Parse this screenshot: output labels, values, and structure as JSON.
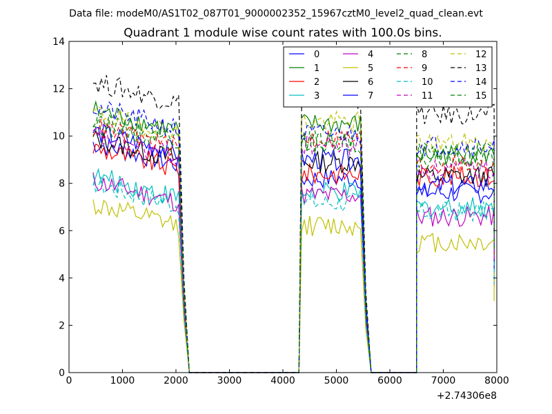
{
  "chart_data": {
    "type": "line",
    "suptitle": "Data file: modeM0/AS1T02_087T01_9000002352_15967cztM0_level2_quad_clean.evt",
    "title": "Quadrant 1 module wise count rates with 100.0s bins.",
    "xlabel": "",
    "ylabel": "",
    "x_offset_label": "+2.74306e8",
    "xlim": [
      0,
      8000
    ],
    "ylim": [
      0,
      14
    ],
    "xticks": [
      "0",
      "1000",
      "2000",
      "3000",
      "4000",
      "5000",
      "6000",
      "7000",
      "8000"
    ],
    "yticks": [
      "0",
      "2",
      "4",
      "6",
      "8",
      "10",
      "12",
      "14"
    ],
    "grid": false,
    "legend_position": "top-right",
    "segments": [
      {
        "x_start": 450,
        "x_end": 2050,
        "x_drop": 2250
      },
      {
        "x_start": 4300,
        "x_end": 5450,
        "x_drop": 5650
      },
      {
        "x_start": 6500,
        "x_end": 7950,
        "x_drop": 7950
      }
    ],
    "series": [
      {
        "name": "0",
        "color": "#0000ff",
        "dash": false,
        "levels": [
          8.8,
          8.2,
          7.6
        ]
      },
      {
        "name": "1",
        "color": "#008000",
        "dash": false,
        "levels": [
          10.2,
          10.5,
          9.2
        ]
      },
      {
        "name": "2",
        "color": "#ff0000",
        "dash": false,
        "levels": [
          8.6,
          8.4,
          8.3
        ]
      },
      {
        "name": "3",
        "color": "#00bfbf",
        "dash": false,
        "levels": [
          7.4,
          7.6,
          7.0
        ]
      },
      {
        "name": "4",
        "color": "#bf00bf",
        "dash": false,
        "levels": [
          7.2,
          7.5,
          6.6
        ]
      },
      {
        "name": "5",
        "color": "#bfbf00",
        "dash": false,
        "levels": [
          6.2,
          6.2,
          5.5
        ]
      },
      {
        "name": "6",
        "color": "#000000",
        "dash": false,
        "levels": [
          9.0,
          8.9,
          8.3
        ]
      },
      {
        "name": "7",
        "color": "#0000ff",
        "dash": false,
        "levels": [
          9.3,
          9.0,
          7.9
        ]
      },
      {
        "name": "8",
        "color": "#008000",
        "dash": true,
        "levels": [
          9.7,
          9.8,
          9.0
        ]
      },
      {
        "name": "9",
        "color": "#ff0000",
        "dash": true,
        "levels": [
          9.5,
          9.9,
          8.8
        ]
      },
      {
        "name": "10",
        "color": "#00bfbf",
        "dash": true,
        "levels": [
          7.1,
          7.2,
          6.8
        ]
      },
      {
        "name": "11",
        "color": "#bf00bf",
        "dash": true,
        "levels": [
          9.1,
          9.6,
          8.6
        ]
      },
      {
        "name": "12",
        "color": "#bfbf00",
        "dash": true,
        "levels": [
          10.1,
          10.6,
          9.7
        ]
      },
      {
        "name": "13",
        "color": "#000000",
        "dash": true,
        "levels": [
          11.4,
          11.6,
          10.9
        ]
      },
      {
        "name": "14",
        "color": "#0000ff",
        "dash": true,
        "levels": [
          10.3,
          10.1,
          9.6
        ]
      },
      {
        "name": "15",
        "color": "#008000",
        "dash": true,
        "levels": [
          9.9,
          9.7,
          9.3
        ]
      }
    ]
  }
}
